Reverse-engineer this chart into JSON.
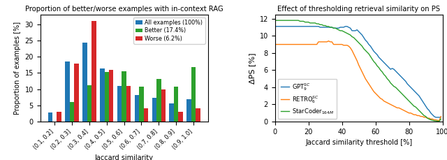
{
  "bar_categories": [
    "(0.1, 0.2]",
    "(0.2, 0.3]",
    "(0.3, 0.4]",
    "(0.4, 0.5]",
    "(0.5, 0.6]",
    "(0.6, 0.7]",
    "(0.7, 0.8]",
    "(0.8, 0.9]",
    "(0.9, 1.0]"
  ],
  "all_values": [
    2.7,
    18.5,
    24.3,
    16.3,
    10.9,
    8.2,
    7.3,
    5.5,
    6.9
  ],
  "better_values": [
    0.0,
    6.1,
    11.1,
    15.2,
    15.4,
    10.8,
    13.2,
    10.8,
    16.8
  ],
  "worse_values": [
    3.1,
    17.9,
    31.0,
    15.9,
    11.0,
    4.1,
    10.0,
    3.1,
    4.1
  ],
  "bar_title": "Proportion of better/worse examples with in-context RAG",
  "bar_xlabel": "Jaccard similarity",
  "bar_ylabel": "Proportion of examples [%]",
  "bar_ylim": [
    0,
    33
  ],
  "bar_legend": [
    "All examples (100%)",
    "Better (17.4%)",
    "Worse (6.2%)"
  ],
  "bar_colors": [
    "#1f77b4",
    "#2ca02c",
    "#d62728"
  ],
  "line_title": "Effect of thresholding retrieval similarity on PS",
  "line_xlabel": "Jaccard similarity threshold [%]",
  "line_ylabel": "ΔPS [%]",
  "line_ylim": [
    0,
    12.5
  ],
  "line_xlim": [
    0,
    100
  ],
  "line_legend": [
    "GPT$_9^{SC}$",
    "RETRO$_6^{SC}$",
    "StarCoder$_{164M}$"
  ],
  "line_colors": [
    "#1f77b4",
    "#ff7f0e",
    "#2ca02c"
  ],
  "gpt_y": [
    11.1,
    11.1,
    11.1,
    11.1,
    11.1,
    11.1,
    11.1,
    11.1,
    11.1,
    11.1,
    11.1,
    11.1,
    11.1,
    11.1,
    11.1,
    11.1,
    11.1,
    11.1,
    11.1,
    11.1,
    11.1,
    11.1,
    11.1,
    11.1,
    11.1,
    11.1,
    11.1,
    11.0,
    11.0,
    11.0,
    11.0,
    11.0,
    11.0,
    11.0,
    11.0,
    10.9,
    10.9,
    10.9,
    10.9,
    11.0,
    11.0,
    11.0,
    11.1,
    11.1,
    11.0,
    10.9,
    10.6,
    10.6,
    10.6,
    10.7,
    10.5,
    10.3,
    10.1,
    9.8,
    9.5,
    9.3,
    9.0,
    8.8,
    8.5,
    8.2,
    8.0,
    7.8,
    7.5,
    7.3,
    7.1,
    6.9,
    6.7,
    6.5,
    6.3,
    6.1,
    6.2,
    6.1,
    5.9,
    5.7,
    5.5,
    5.3,
    5.1,
    4.9,
    4.7,
    4.4,
    4.2,
    4.0,
    3.8,
    3.6,
    3.4,
    3.2,
    3.0,
    2.7,
    2.4,
    2.1,
    1.8,
    1.5,
    1.3,
    1.0,
    0.8,
    0.6,
    0.5,
    0.5,
    0.5,
    0.5
  ],
  "retro_y": [
    9.0,
    9.0,
    9.0,
    9.0,
    9.0,
    9.0,
    9.0,
    9.0,
    9.0,
    9.0,
    9.0,
    9.0,
    9.0,
    9.0,
    9.0,
    9.0,
    9.0,
    9.0,
    9.0,
    9.0,
    9.0,
    9.0,
    9.0,
    9.0,
    9.0,
    9.0,
    9.3,
    9.3,
    9.3,
    9.3,
    9.3,
    9.3,
    9.4,
    9.3,
    9.3,
    9.0,
    9.0,
    9.0,
    9.0,
    9.0,
    9.0,
    8.9,
    8.9,
    8.9,
    8.8,
    8.6,
    8.3,
    7.9,
    7.5,
    7.1,
    6.6,
    6.2,
    5.8,
    5.4,
    5.0,
    4.7,
    4.4,
    4.1,
    3.8,
    3.5,
    3.3,
    3.1,
    2.9,
    2.7,
    2.6,
    2.4,
    2.3,
    2.2,
    2.1,
    2.0,
    1.9,
    1.8,
    1.7,
    1.6,
    1.6,
    1.5,
    1.4,
    1.3,
    1.2,
    1.1,
    1.0,
    1.0,
    0.9,
    0.8,
    0.8,
    0.7,
    0.7,
    0.6,
    0.6,
    0.5,
    0.5,
    0.4,
    0.4,
    0.3,
    0.3,
    0.2,
    0.2,
    0.15,
    0.1,
    0.6
  ],
  "starcoder_y": [
    11.8,
    11.8,
    11.8,
    11.8,
    11.8,
    11.8,
    11.8,
    11.8,
    11.8,
    11.8,
    11.8,
    11.8,
    11.8,
    11.8,
    11.8,
    11.7,
    11.7,
    11.7,
    11.6,
    11.6,
    11.6,
    11.5,
    11.5,
    11.5,
    11.5,
    11.4,
    11.4,
    11.3,
    11.3,
    11.2,
    11.2,
    11.1,
    11.1,
    11.0,
    11.0,
    10.9,
    10.9,
    10.8,
    10.7,
    10.6,
    10.6,
    10.5,
    10.4,
    10.3,
    10.2,
    10.1,
    9.9,
    9.8,
    9.6,
    9.4,
    9.2,
    9.0,
    8.8,
    8.5,
    8.3,
    8.1,
    7.9,
    7.6,
    7.3,
    7.0,
    6.8,
    6.5,
    6.3,
    6.0,
    5.8,
    5.5,
    5.3,
    5.0,
    4.8,
    4.5,
    4.3,
    4.1,
    4.0,
    3.8,
    3.6,
    3.4,
    3.2,
    3.0,
    2.8,
    2.6,
    2.4,
    2.2,
    2.0,
    1.8,
    1.7,
    1.5,
    1.3,
    1.1,
    0.9,
    0.7,
    0.6,
    0.4,
    0.3,
    0.2,
    0.15,
    0.1,
    0.08,
    0.05,
    0.03,
    0.3
  ]
}
